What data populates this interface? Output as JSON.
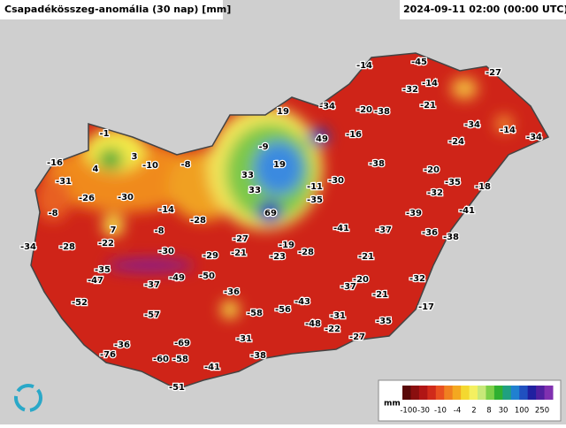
{
  "header": {
    "title": "Csapadékösszeg-anomália (30 nap) [mm]",
    "timestamp": "2024-09-11 02:00 (00:00 UTC)"
  },
  "stations": [
    -14,
    -45,
    -27,
    -32,
    -14,
    -21,
    -34,
    -20,
    -38,
    19,
    -34,
    -14,
    -34,
    49,
    -16,
    -24,
    -1,
    3,
    4,
    -10,
    -8,
    -9,
    19,
    -38,
    -16,
    -31,
    -20,
    -35,
    -18,
    33,
    -11,
    -30,
    -32,
    -26,
    -30,
    33,
    -35,
    -8,
    -14,
    69,
    -41,
    -39,
    -28,
    7,
    -8,
    -41,
    -37,
    -36,
    -38,
    -22,
    -27,
    -19,
    -34,
    -28,
    -30,
    -29,
    -21,
    -23,
    -28,
    -21,
    -35,
    -47,
    -49,
    -50,
    -37,
    -32,
    -20,
    -37,
    -21,
    -36,
    -43,
    -52,
    -58,
    -56,
    -17,
    -57,
    -31,
    -35,
    -48,
    -22,
    -27,
    -31,
    -36,
    -69,
    -76,
    -60,
    -58,
    -38,
    -41,
    -51
  ],
  "legend": {
    "unit": "mm",
    "ticks": [
      -100,
      -30,
      -10,
      -4,
      2,
      8,
      30,
      100,
      250
    ]
  }
}
